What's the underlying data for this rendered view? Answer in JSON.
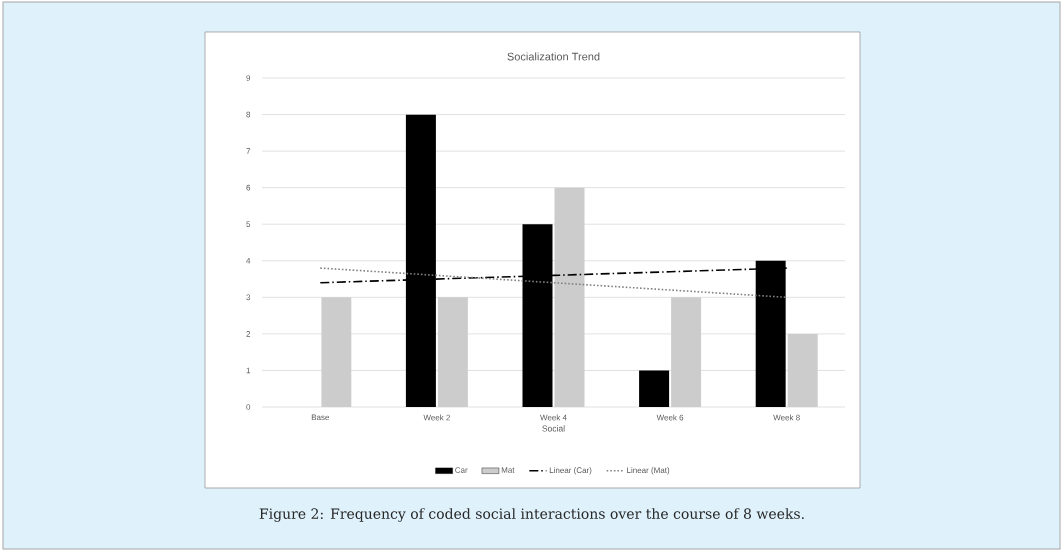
{
  "chart_data": {
    "type": "bar",
    "title": "Socialization Trend",
    "xlabel": "Social",
    "categories": [
      "Base",
      "Week 2",
      "Week 4",
      "Week 6",
      "Week 8"
    ],
    "series": [
      {
        "name": "Car",
        "color": "#000000",
        "values": [
          0,
          8,
          5,
          1,
          4
        ]
      },
      {
        "name": "Mat",
        "color": "#cccccc",
        "values": [
          3,
          3,
          6,
          3,
          2
        ]
      },
      {
        "name": "Linear (Car)",
        "type": "line",
        "color": "#000000",
        "line_style": "dashed",
        "values": [
          3.4,
          3.5,
          3.6,
          3.7,
          3.8
        ]
      },
      {
        "name": "Linear (Mat)",
        "type": "line",
        "color": "#808080",
        "line_style": "dotted",
        "values": [
          3.8,
          3.6,
          3.4,
          3.2,
          3.0
        ]
      }
    ],
    "ylim": [
      0,
      9
    ],
    "yticks": [
      0,
      1,
      2,
      3,
      4,
      5,
      6,
      7,
      8,
      9
    ],
    "grid": "y",
    "legend": "bottom",
    "annotations": [
      "Figure 2: Frequency of coded social interactions over the course of 8 weeks."
    ]
  }
}
